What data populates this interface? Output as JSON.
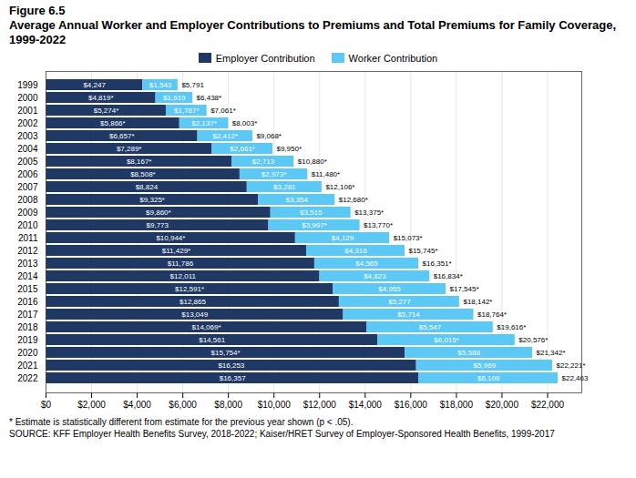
{
  "chart_data": {
    "type": "bar",
    "orientation": "horizontal",
    "stacked": true,
    "data_labels": true,
    "grid": true,
    "legend": "top",
    "title": "Figure 6.5",
    "subtitle": "Average Annual Worker and Employer Contributions to Premiums and Total Premiums for Family Coverage, 1999-2022",
    "annotations": [
      "* Estimate is statistically different from estimate for the previous year shown (p < .05).",
      "SOURCE: KFF Employer Health Benefits Survey, 2018-2022; Kaiser/HRET Survey of Employer-Sponsored Health Benefits, 1999-2017"
    ],
    "categories": [
      "1999",
      "2000",
      "2001",
      "2002",
      "2003",
      "2004",
      "2005",
      "2006",
      "2007",
      "2008",
      "2009",
      "2010",
      "2011",
      "2012",
      "2013",
      "2014",
      "2015",
      "2016",
      "2017",
      "2018",
      "2019",
      "2020",
      "2021",
      "2022"
    ],
    "series": [
      {
        "name": "Employer Contribution",
        "color": "#1f3864",
        "values": [
          4247,
          4819,
          5274,
          5866,
          6657,
          7289,
          8167,
          8508,
          8824,
          9325,
          9860,
          9773,
          10944,
          11429,
          11786,
          12011,
          12591,
          12865,
          13049,
          14069,
          14561,
          15754,
          16253,
          16357
        ],
        "value_labels": [
          "$4,247",
          "$4,819*",
          "$5,274*",
          "$5,866*",
          "$6,657*",
          "$7,289*",
          "$8,167*",
          "$8,508*",
          "$8,824",
          "$9,325*",
          "$9,860*",
          "$9,773",
          "$10,944*",
          "$11,429*",
          "$11,786",
          "$12,011",
          "$12,591*",
          "$12,865",
          "$13,049",
          "$14,069*",
          "$14,561",
          "$15,754*",
          "$16,253",
          "$16,357"
        ]
      },
      {
        "name": "Worker Contribution",
        "color": "#5bc8f5",
        "values": [
          1543,
          1619,
          1787,
          2137,
          2412,
          2661,
          2713,
          2973,
          3281,
          3354,
          3515,
          3997,
          4129,
          4316,
          4565,
          4823,
          4955,
          5277,
          5714,
          5547,
          6015,
          5588,
          5969,
          6106
        ],
        "value_labels": [
          "$1,543",
          "$1,619",
          "$1,787*",
          "$2,137*",
          "$2,412*",
          "$2,661*",
          "$2,713",
          "$2,973*",
          "$3,281",
          "$3,354",
          "$3,515",
          "$3,997*",
          "$4,129",
          "$4,316",
          "$4,565",
          "$4,823",
          "$4,955",
          "$5,277",
          "$5,714",
          "$5,547",
          "$6,015*",
          "$5,588",
          "$5,969",
          "$6,106"
        ]
      }
    ],
    "totals": [
      5791,
      6438,
      7061,
      8003,
      9068,
      9950,
      10880,
      11480,
      12106,
      12680,
      13375,
      13770,
      15073,
      15745,
      16351,
      16834,
      17545,
      18142,
      18764,
      19616,
      20576,
      21342,
      22221,
      22463
    ],
    "total_labels": [
      "$5,791",
      "$6,438*",
      "$7,061*",
      "$8,003*",
      "$9,068*",
      "$9,950*",
      "$10,880*",
      "$11,480*",
      "$12,106*",
      "$12,680*",
      "$13,375*",
      "$13,770*",
      "$15,073*",
      "$15,745*",
      "$16,351*",
      "$16,834*",
      "$17,545*",
      "$18,142*",
      "$18,764*",
      "$19,616*",
      "$20,576*",
      "$21,342*",
      "$22,221*",
      "$22,463"
    ],
    "xlim": [
      0,
      23500
    ],
    "xticks": [
      {
        "value": 0,
        "label": "$0"
      },
      {
        "value": 2000,
        "label": "$2,000"
      },
      {
        "value": 4000,
        "label": "$4,000"
      },
      {
        "value": 6000,
        "label": "$6,000"
      },
      {
        "value": 8000,
        "label": "$8,000"
      },
      {
        "value": 10000,
        "label": "$10,000"
      },
      {
        "value": 12000,
        "label": "$12,000"
      },
      {
        "value": 14000,
        "label": "$14,000"
      },
      {
        "value": 16000,
        "label": "$16,000"
      },
      {
        "value": 18000,
        "label": "$18,000"
      },
      {
        "value": 20000,
        "label": "$20,000"
      },
      {
        "value": 22000,
        "label": "$22,000"
      }
    ]
  }
}
